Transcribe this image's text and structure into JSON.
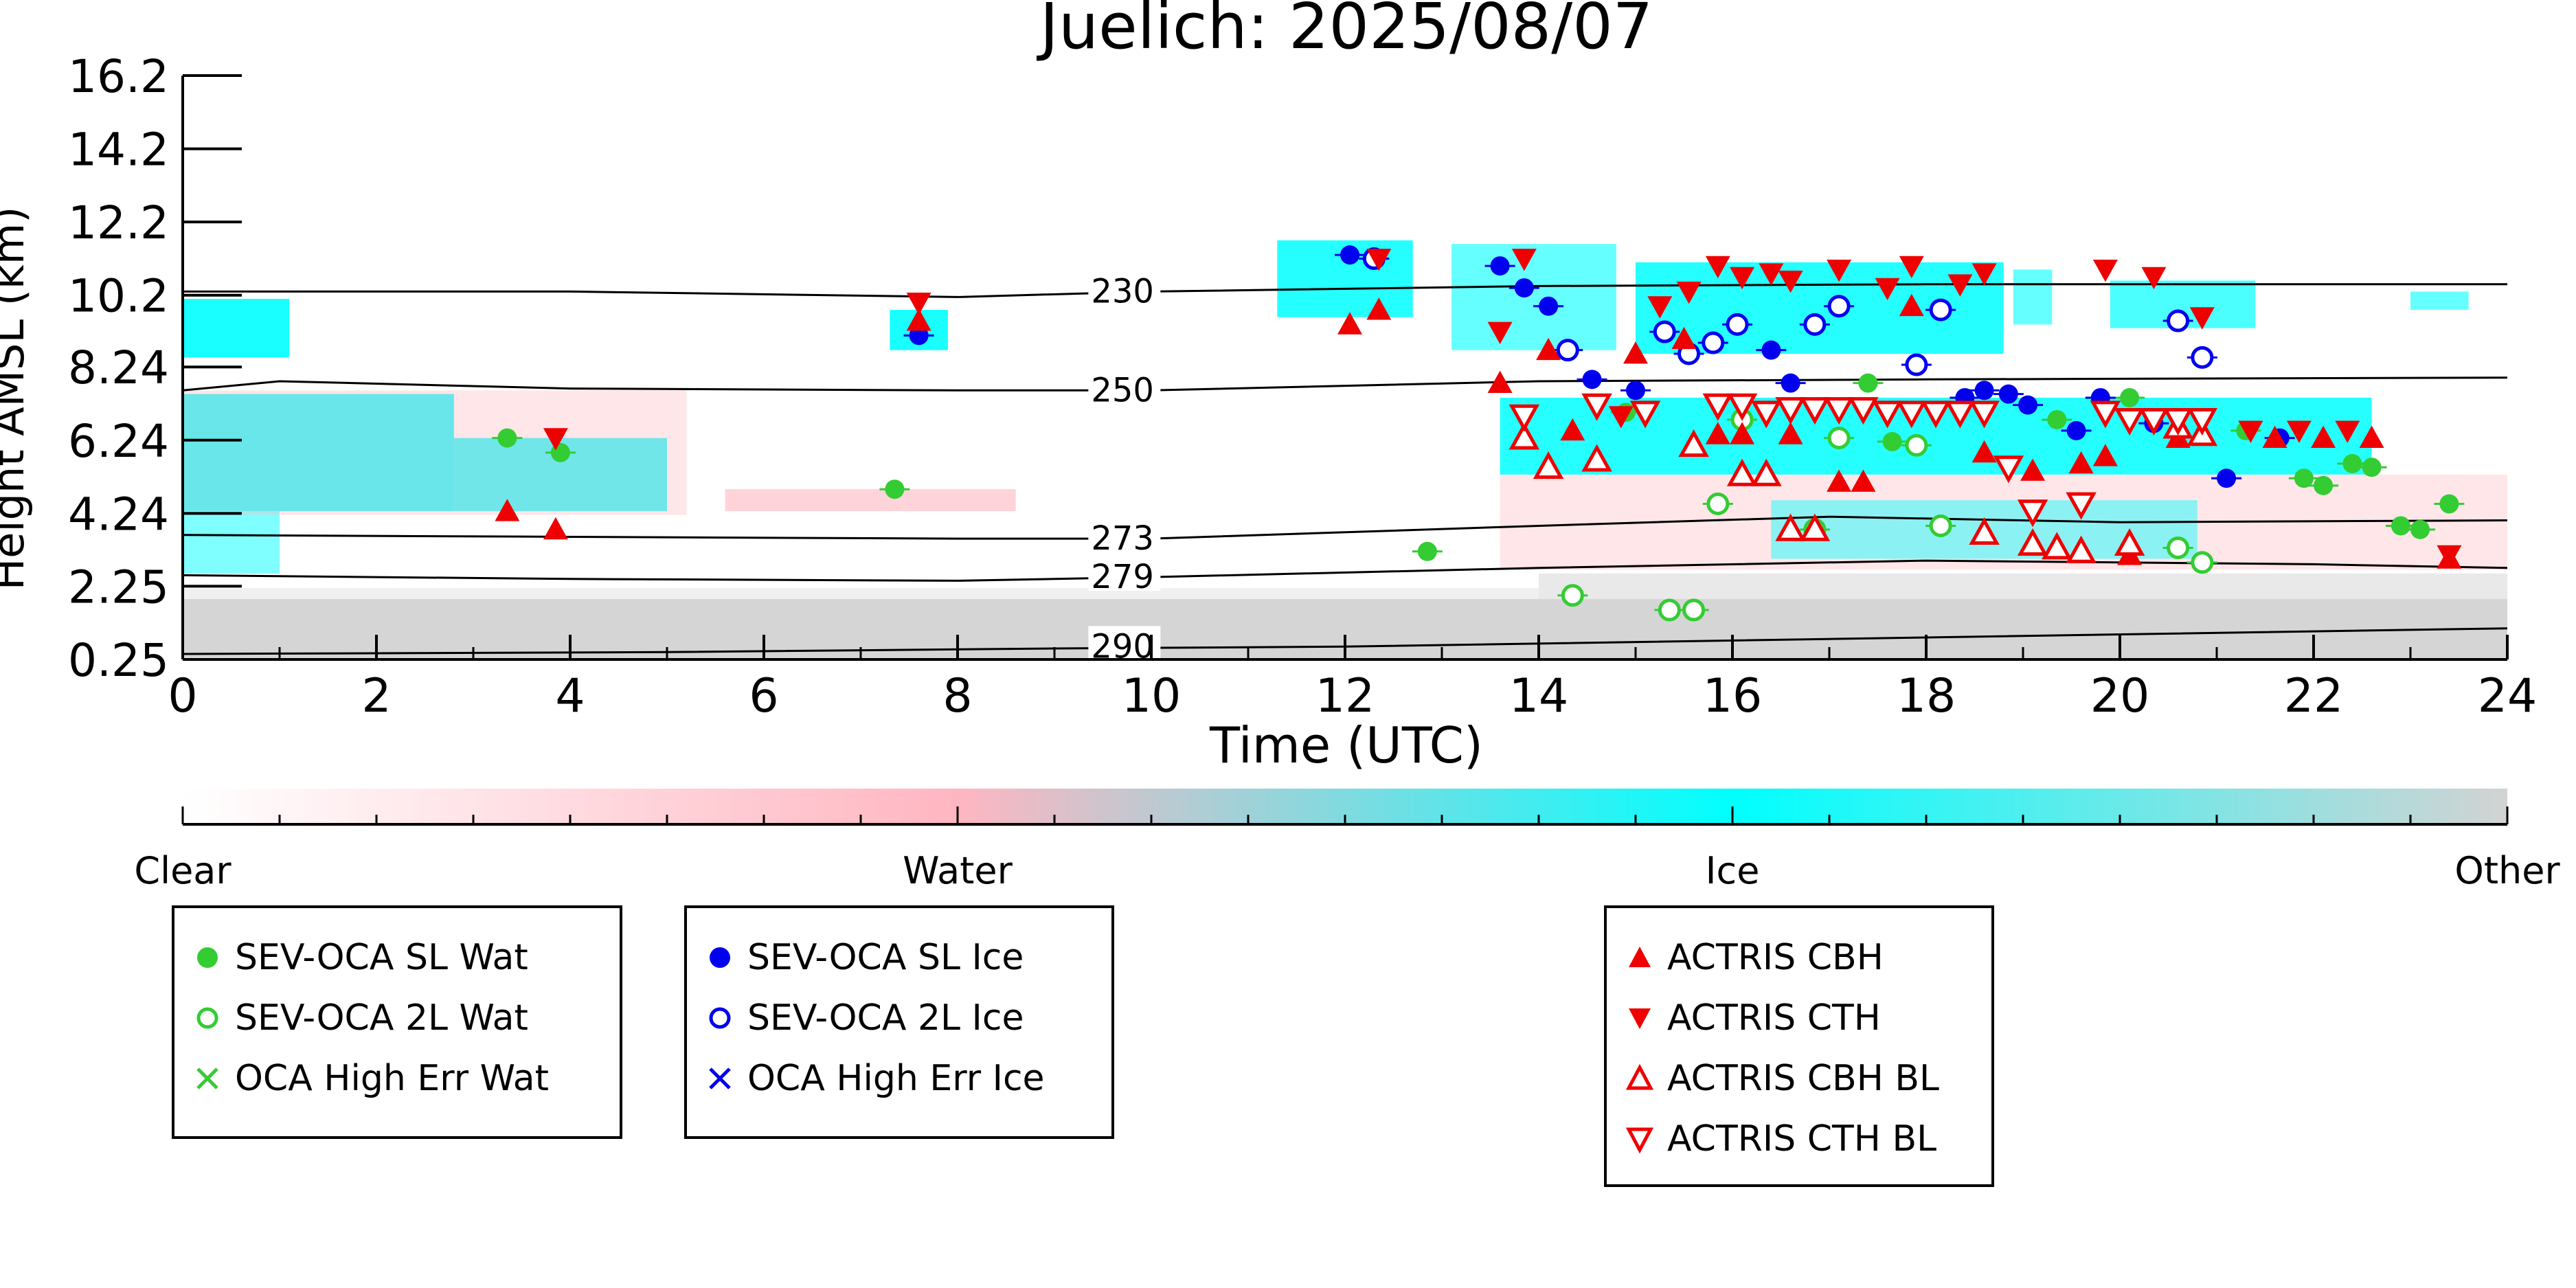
{
  "chart_data": {
    "type": "scatter",
    "title": "Juelich: 2025/08/07",
    "xlabel": "Time (UTC)",
    "ylabel": "Height AMSL (km)",
    "xlim": [
      0,
      24
    ],
    "ylim": [
      0.25,
      16.2
    ],
    "x_ticks": [
      "0",
      "2",
      "4",
      "6",
      "8",
      "10",
      "12",
      "14",
      "16",
      "18",
      "20",
      "22",
      "24"
    ],
    "y_ticks": [
      "0.25",
      "2.25",
      "4.24",
      "6.24",
      "8.24",
      "10.2",
      "12.2",
      "14.2",
      "16.2"
    ],
    "colorbar": {
      "labels": [
        "Clear",
        "Water",
        "Ice",
        "Other"
      ],
      "colors": [
        "#ffffff",
        "#ffb6c1",
        "#00ffff",
        "#d3d3d3"
      ]
    },
    "isotherms": [
      {
        "label": "230",
        "points": [
          [
            0,
            10.3
          ],
          [
            4,
            10.3
          ],
          [
            8,
            10.15
          ],
          [
            10,
            10.3
          ],
          [
            14,
            10.45
          ],
          [
            18,
            10.5
          ],
          [
            24,
            10.5
          ]
        ]
      },
      {
        "label": "250",
        "points": [
          [
            0,
            7.6
          ],
          [
            1,
            7.85
          ],
          [
            4,
            7.65
          ],
          [
            8,
            7.6
          ],
          [
            10,
            7.6
          ],
          [
            14,
            7.85
          ],
          [
            18,
            7.9
          ],
          [
            24,
            7.95
          ]
        ]
      },
      {
        "label": "273",
        "points": [
          [
            0,
            3.65
          ],
          [
            4,
            3.6
          ],
          [
            8,
            3.55
          ],
          [
            10,
            3.55
          ],
          [
            14,
            3.9
          ],
          [
            17,
            4.15
          ],
          [
            20,
            4.0
          ],
          [
            24,
            4.05
          ]
        ]
      },
      {
        "label": "279",
        "points": [
          [
            0,
            2.55
          ],
          [
            4,
            2.45
          ],
          [
            8,
            2.4
          ],
          [
            10,
            2.5
          ],
          [
            14,
            2.75
          ],
          [
            18,
            2.95
          ],
          [
            22,
            2.85
          ],
          [
            24,
            2.75
          ]
        ]
      },
      {
        "label": "290",
        "points": [
          [
            0,
            0.4
          ],
          [
            5,
            0.45
          ],
          [
            9,
            0.55
          ],
          [
            12,
            0.6
          ],
          [
            18,
            0.85
          ],
          [
            24,
            1.1
          ]
        ]
      }
    ],
    "series": [
      {
        "name": "SEV-OCA SL Wat",
        "color": "#33cc33",
        "marker": "filled-circle",
        "points": [
          [
            3.35,
            6.3
          ],
          [
            3.9,
            5.9
          ],
          [
            7.35,
            4.9
          ],
          [
            12.85,
            3.2
          ],
          [
            14.9,
            7.0
          ],
          [
            17.4,
            7.8
          ],
          [
            17.65,
            6.2
          ],
          [
            19.35,
            6.8
          ],
          [
            20.1,
            7.4
          ],
          [
            21.3,
            6.5
          ],
          [
            21.9,
            5.2
          ],
          [
            22.1,
            5.0
          ],
          [
            22.4,
            5.6
          ],
          [
            22.6,
            5.5
          ],
          [
            22.9,
            3.9
          ],
          [
            23.1,
            3.8
          ],
          [
            23.4,
            4.5
          ]
        ]
      },
      {
        "name": "SEV-OCA 2L Wat",
        "color": "#33cc33",
        "marker": "open-circle",
        "points": [
          [
            14.35,
            2.0
          ],
          [
            15.35,
            1.6
          ],
          [
            15.6,
            1.6
          ],
          [
            15.85,
            4.5
          ],
          [
            16.1,
            6.8
          ],
          [
            16.85,
            3.8
          ],
          [
            17.1,
            6.3
          ],
          [
            17.9,
            6.1
          ],
          [
            18.15,
            3.9
          ],
          [
            20.6,
            3.3
          ],
          [
            20.85,
            2.9
          ]
        ]
      },
      {
        "name": "OCA High Err Wat",
        "color": "#33cc33",
        "marker": "x",
        "points": []
      },
      {
        "name": "SEV-OCA SL Ice",
        "color": "#0000ee",
        "marker": "filled-circle",
        "points": [
          [
            7.6,
            9.1
          ],
          [
            12.05,
            11.3
          ],
          [
            13.6,
            11.0
          ],
          [
            13.85,
            10.4
          ],
          [
            14.1,
            9.9
          ],
          [
            14.55,
            7.9
          ],
          [
            15.0,
            7.6
          ],
          [
            16.4,
            8.7
          ],
          [
            16.6,
            7.8
          ],
          [
            18.4,
            7.4
          ],
          [
            18.6,
            7.6
          ],
          [
            18.85,
            7.5
          ],
          [
            19.05,
            7.2
          ],
          [
            19.55,
            6.5
          ],
          [
            19.8,
            7.4
          ],
          [
            20.35,
            6.7
          ],
          [
            21.1,
            5.2
          ],
          [
            21.65,
            6.3
          ]
        ]
      },
      {
        "name": "SEV-OCA 2L Ice",
        "color": "#0000ee",
        "marker": "open-circle",
        "points": [
          [
            12.3,
            11.2
          ],
          [
            14.3,
            8.7
          ],
          [
            15.3,
            9.2
          ],
          [
            15.55,
            8.6
          ],
          [
            15.8,
            8.9
          ],
          [
            16.05,
            9.4
          ],
          [
            16.85,
            9.4
          ],
          [
            17.1,
            9.9
          ],
          [
            17.9,
            8.3
          ],
          [
            18.15,
            9.8
          ],
          [
            20.6,
            9.5
          ],
          [
            20.85,
            8.5
          ]
        ]
      },
      {
        "name": "OCA High Err Ice",
        "color": "#0000ee",
        "marker": "x",
        "points": []
      },
      {
        "name": "ACTRIS CBH",
        "color": "#ee0000",
        "marker": "filled-triangle-up",
        "points": [
          [
            3.35,
            4.3
          ],
          [
            3.85,
            3.8
          ],
          [
            7.6,
            9.5
          ],
          [
            12.05,
            9.4
          ],
          [
            12.35,
            9.8
          ],
          [
            13.6,
            7.8
          ],
          [
            14.1,
            8.7
          ],
          [
            14.35,
            6.5
          ],
          [
            15.0,
            8.6
          ],
          [
            15.5,
            9.0
          ],
          [
            15.85,
            6.4
          ],
          [
            16.1,
            6.4
          ],
          [
            16.6,
            6.4
          ],
          [
            17.1,
            5.1
          ],
          [
            17.35,
            5.1
          ],
          [
            17.85,
            9.9
          ],
          [
            18.6,
            5.9
          ],
          [
            19.1,
            5.4
          ],
          [
            19.6,
            5.6
          ],
          [
            19.85,
            5.8
          ],
          [
            20.1,
            3.1
          ],
          [
            20.6,
            6.3
          ],
          [
            21.6,
            6.3
          ],
          [
            22.1,
            6.3
          ],
          [
            22.6,
            6.3
          ],
          [
            23.4,
            3.0
          ]
        ]
      },
      {
        "name": "ACTRIS CTH",
        "color": "#ee0000",
        "marker": "filled-triangle-down",
        "points": [
          [
            3.85,
            6.3
          ],
          [
            7.6,
            10.0
          ],
          [
            12.35,
            11.2
          ],
          [
            13.6,
            9.2
          ],
          [
            13.85,
            11.2
          ],
          [
            14.85,
            6.9
          ],
          [
            15.25,
            9.9
          ],
          [
            15.55,
            10.3
          ],
          [
            15.85,
            11.0
          ],
          [
            16.1,
            10.7
          ],
          [
            16.4,
            10.8
          ],
          [
            16.6,
            10.6
          ],
          [
            17.1,
            10.9
          ],
          [
            17.6,
            10.4
          ],
          [
            17.85,
            11.0
          ],
          [
            18.35,
            10.5
          ],
          [
            18.6,
            10.8
          ],
          [
            19.85,
            10.9
          ],
          [
            20.35,
            10.7
          ],
          [
            20.85,
            9.6
          ],
          [
            21.35,
            6.5
          ],
          [
            21.85,
            6.5
          ],
          [
            22.35,
            6.5
          ],
          [
            23.4,
            3.1
          ]
        ]
      },
      {
        "name": "ACTRIS CBH BL",
        "color": "#ee0000",
        "marker": "open-triangle-up",
        "points": [
          [
            13.85,
            6.3
          ],
          [
            14.1,
            5.5
          ],
          [
            14.6,
            5.7
          ],
          [
            15.6,
            6.1
          ],
          [
            16.1,
            5.3
          ],
          [
            16.35,
            5.3
          ],
          [
            16.6,
            3.8
          ],
          [
            16.85,
            3.8
          ],
          [
            18.6,
            3.7
          ],
          [
            19.1,
            3.4
          ],
          [
            19.35,
            3.3
          ],
          [
            19.6,
            3.2
          ],
          [
            20.1,
            3.4
          ],
          [
            20.6,
            6.6
          ],
          [
            20.85,
            6.4
          ]
        ]
      },
      {
        "name": "ACTRIS CTH BL",
        "color": "#ee0000",
        "marker": "open-triangle-down",
        "points": [
          [
            13.85,
            6.9
          ],
          [
            14.6,
            7.2
          ],
          [
            15.1,
            7.0
          ],
          [
            15.85,
            7.2
          ],
          [
            16.1,
            7.2
          ],
          [
            16.35,
            7.0
          ],
          [
            16.6,
            7.1
          ],
          [
            16.85,
            7.1
          ],
          [
            17.1,
            7.1
          ],
          [
            17.35,
            7.1
          ],
          [
            17.6,
            7.0
          ],
          [
            17.85,
            7.0
          ],
          [
            18.1,
            7.0
          ],
          [
            18.35,
            7.0
          ],
          [
            18.6,
            7.0
          ],
          [
            18.85,
            5.5
          ],
          [
            19.1,
            4.3
          ],
          [
            19.6,
            4.5
          ],
          [
            19.85,
            7.0
          ],
          [
            20.1,
            6.8
          ],
          [
            20.35,
            6.8
          ],
          [
            20.6,
            6.8
          ],
          [
            20.85,
            6.8
          ]
        ]
      }
    ],
    "legend_groups": [
      [
        "SEV-OCA SL Wat",
        "SEV-OCA 2L Wat",
        "OCA High Err Wat"
      ],
      [
        "SEV-OCA SL Ice",
        "SEV-OCA 2L Ice",
        "OCA High Err Ice"
      ],
      [
        "ACTRIS CBH",
        "ACTRIS CTH",
        "ACTRIS CBH BL",
        "ACTRIS CTH BL"
      ]
    ]
  }
}
